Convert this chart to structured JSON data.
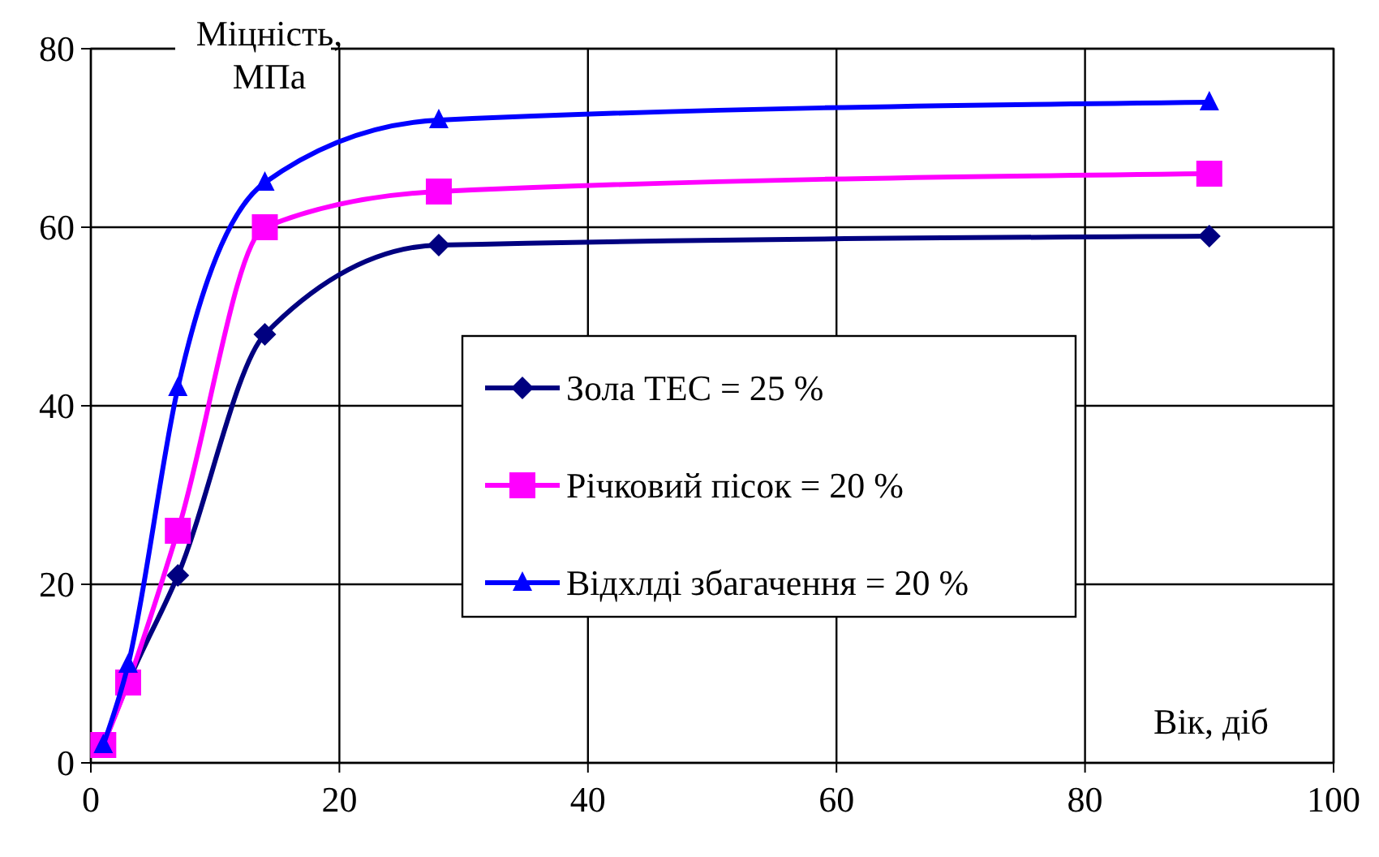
{
  "chart_data": {
    "type": "line",
    "xlabel": "Вік, діб",
    "ylabel": "Міцність, МПа",
    "x": [
      1,
      3,
      7,
      14,
      28,
      90
    ],
    "xlim": [
      0,
      100
    ],
    "xticks": [
      0,
      20,
      40,
      60,
      80,
      100
    ],
    "ylim": [
      0,
      80
    ],
    "yticks": [
      0,
      20,
      40,
      60,
      80
    ],
    "grid": true,
    "legend": "right",
    "line_style": "solid",
    "series": [
      {
        "name": "Зола ТЕС = 25 %",
        "color": "#000080",
        "marker": "diamond",
        "values": [
          2,
          9,
          21,
          48,
          58,
          59
        ]
      },
      {
        "name": "Річковий пісок = 20 %",
        "color": "#ff00ff",
        "marker": "square",
        "values": [
          2,
          9,
          26,
          60,
          64,
          66
        ]
      },
      {
        "name": "Відхлді збагачення = 20 %",
        "color": "#0000ff",
        "marker": "triangle",
        "values": [
          2,
          11,
          42,
          65,
          72,
          74
        ]
      }
    ]
  }
}
